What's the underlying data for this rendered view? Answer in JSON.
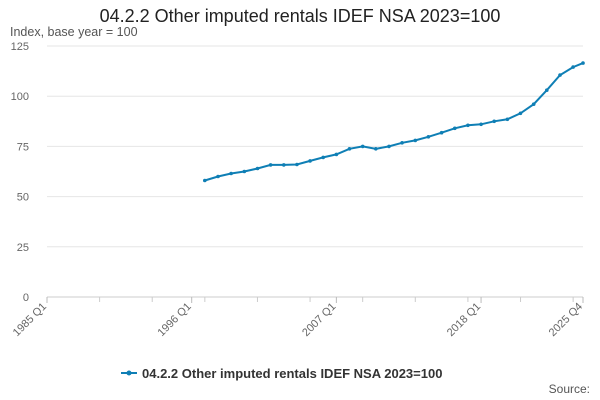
{
  "chart_data": {
    "type": "line",
    "title": "04.2.2 Other imputed rentals IDEF NSA 2023=100",
    "ylabel": "Index, base year = 100",
    "xlabel": "",
    "x_ticks": [
      "1985 Q1",
      "1996 Q1",
      "2007 Q1",
      "2018 Q1",
      "2025 Q4"
    ],
    "x_range": [
      "1985 Q1",
      "2025 Q4"
    ],
    "ylim": [
      0,
      125
    ],
    "y_ticks": [
      0,
      25,
      50,
      75,
      100,
      125
    ],
    "grid": true,
    "legend_position": "bottom",
    "series": [
      {
        "name": "04.2.2 Other imputed rentals IDEF NSA 2023=100",
        "color": "#0f7fb5",
        "points": [
          {
            "x": "1997 Q1",
            "y": 58.0
          },
          {
            "x": "1998 Q1",
            "y": 60.0
          },
          {
            "x": "1999 Q1",
            "y": 61.5
          },
          {
            "x": "2000 Q1",
            "y": 62.5
          },
          {
            "x": "2001 Q1",
            "y": 64.0
          },
          {
            "x": "2002 Q1",
            "y": 65.8
          },
          {
            "x": "2003 Q1",
            "y": 65.8
          },
          {
            "x": "2004 Q1",
            "y": 66.0
          },
          {
            "x": "2005 Q1",
            "y": 67.8
          },
          {
            "x": "2006 Q1",
            "y": 69.5
          },
          {
            "x": "2007 Q1",
            "y": 71.0
          },
          {
            "x": "2008 Q1",
            "y": 73.8
          },
          {
            "x": "2009 Q1",
            "y": 75.0
          },
          {
            "x": "2010 Q1",
            "y": 73.8
          },
          {
            "x": "2011 Q1",
            "y": 75.0
          },
          {
            "x": "2012 Q1",
            "y": 76.8
          },
          {
            "x": "2013 Q1",
            "y": 78.0
          },
          {
            "x": "2014 Q1",
            "y": 79.8
          },
          {
            "x": "2015 Q1",
            "y": 81.8
          },
          {
            "x": "2016 Q1",
            "y": 84.0
          },
          {
            "x": "2017 Q1",
            "y": 85.5
          },
          {
            "x": "2018 Q1",
            "y": 86.0
          },
          {
            "x": "2019 Q1",
            "y": 87.5
          },
          {
            "x": "2020 Q1",
            "y": 88.5
          },
          {
            "x": "2021 Q1",
            "y": 91.5
          },
          {
            "x": "2022 Q1",
            "y": 96.0
          },
          {
            "x": "2023 Q1",
            "y": 103.0
          },
          {
            "x": "2024 Q1",
            "y": 110.5
          },
          {
            "x": "2025 Q1",
            "y": 114.5
          },
          {
            "x": "2025 Q4",
            "y": 116.5
          }
        ]
      }
    ]
  },
  "footer": {
    "source_label": "Source:"
  }
}
